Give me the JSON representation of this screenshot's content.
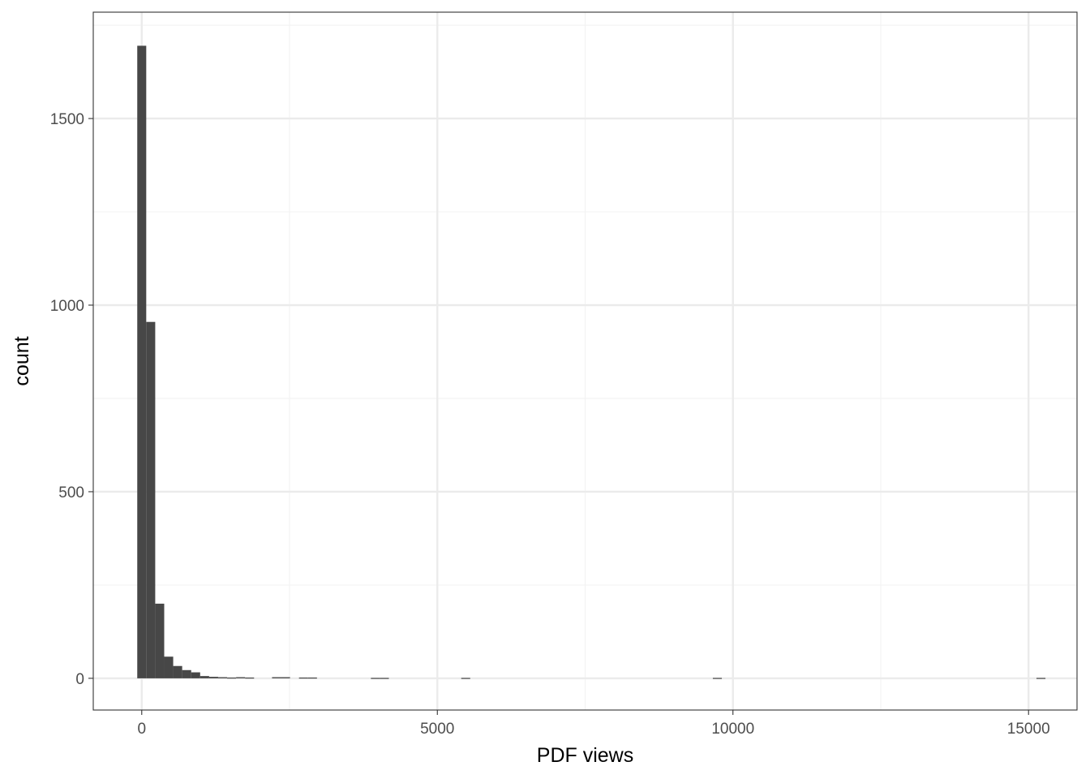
{
  "chart_data": {
    "type": "bar",
    "subtype": "histogram",
    "title": "",
    "xlabel": "PDF views",
    "ylabel": "count",
    "xlim": [
      -820,
      15820
    ],
    "ylim": [
      -85,
      1785
    ],
    "x_ticks": [
      0,
      5000,
      10000,
      15000
    ],
    "x_tick_labels": [
      "0",
      "5000",
      "10000",
      "15000"
    ],
    "x_minor_gridlines": [
      2500,
      7500,
      12500
    ],
    "y_ticks": [
      0,
      500,
      1000,
      1500
    ],
    "y_tick_labels": [
      "0",
      "500",
      "1000",
      "1500"
    ],
    "y_minor_gridlines": [
      250,
      750,
      1250,
      1750
    ],
    "bin_width": 152,
    "bin_centers": [
      0,
      152,
      304,
      456,
      608,
      760,
      912,
      1064,
      1216,
      1368,
      1520,
      1672,
      1824,
      2280,
      2432,
      2736,
      2888,
      3952,
      4104,
      5480,
      9736,
      15210
    ],
    "counts": [
      1695,
      955,
      200,
      58,
      33,
      22,
      16,
      6,
      4,
      3,
      2,
      3,
      2,
      3,
      3,
      2,
      2,
      1,
      1,
      1,
      1,
      1
    ],
    "grid": true,
    "legend": "none",
    "colors": {
      "bar": "#474747",
      "grid_major": "#ebebeb",
      "grid_minor": "#f3f3f3",
      "panel_border": "#333333",
      "tick_label": "#4d4d4d",
      "axis_title": "#000000"
    }
  }
}
